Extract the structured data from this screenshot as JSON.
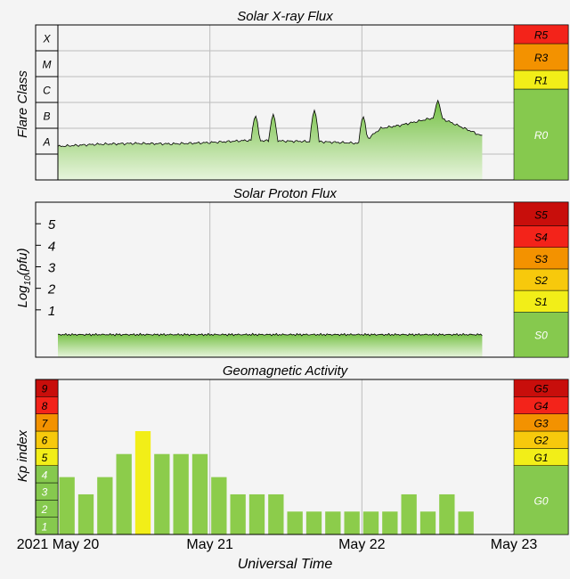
{
  "colors": {
    "background": "#f4f4f4",
    "axis": "#000000",
    "grid": "#bdbdbd",
    "quiet": "#86c94e",
    "fill_top": "#74c043",
    "fill_bottom": "#e7f4dc",
    "level_yellow": "#f2ee18",
    "level_amber": "#f7c90c",
    "level_orange": "#f39200",
    "level_red": "#f3231a",
    "level_darkred": "#c80e0b",
    "kp_bar": "#8ccc4b",
    "kp_bar_storm": "#f2ee18",
    "text": "#000000",
    "scale_text": "#ffffff"
  },
  "chart_data": [
    {
      "type": "area",
      "title": "Solar X-ray Flux",
      "ylabel": "Flare Class",
      "xlabel": "",
      "y_scale": "log",
      "ylim": [
        1e-09,
        0.001
      ],
      "flare_classes": [
        {
          "label": "A",
          "lower": 1e-08
        },
        {
          "label": "B",
          "lower": 1e-07
        },
        {
          "label": "C",
          "lower": 1e-06
        },
        {
          "label": "M",
          "lower": 1e-05
        },
        {
          "label": "X",
          "lower": 0.0001
        }
      ],
      "x_hours": [
        0,
        6,
        12,
        18,
        24,
        30,
        36,
        42,
        48,
        51,
        54,
        60,
        67
      ],
      "y_flux": [
        2e-08,
        2.4e-08,
        2.6e-08,
        2.5e-08,
        2.8e-08,
        3.4e-08,
        3.2e-08,
        3e-08,
        2.6e-08,
        1e-07,
        1.3e-07,
        2.8e-07,
        5e-08
      ],
      "spikes": [
        {
          "hour": 31.2,
          "flux": 3.2e-07
        },
        {
          "hour": 34.0,
          "flux": 3.5e-07
        },
        {
          "hour": 40.5,
          "flux": 5e-07
        },
        {
          "hour": 48.2,
          "flux": 3e-07
        },
        {
          "hour": 60.0,
          "flux": 1.2e-06
        }
      ],
      "radio_scale": [
        "R0",
        "R1",
        "R3",
        "R5"
      ],
      "current_level": "R0"
    },
    {
      "type": "area",
      "title": "Solar Proton Flux",
      "ylabel": "Log10(pfu)",
      "ylabel_main": "Log",
      "ylabel_sub": "10",
      "ylabel_tail": "(pfu)",
      "xlabel": "",
      "ylim": [
        -1.2,
        6
      ],
      "yticks": [
        1,
        2,
        3,
        4,
        5
      ],
      "ytick_labels": [
        "1",
        "2",
        "3",
        "4",
        "5"
      ],
      "x_hours": [
        0,
        67
      ],
      "y_log_pfu": [
        -0.15,
        -0.15
      ],
      "radiation_scale": [
        "S0",
        "S1",
        "S2",
        "S3",
        "S4",
        "S5"
      ],
      "current_level": "S0"
    },
    {
      "type": "bar",
      "title": "Geomagnetic Activity",
      "ylabel": "Kp index",
      "xlabel": "Universal Time",
      "ylim": [
        0,
        9
      ],
      "kp_levels": [
        "1",
        "2",
        "3",
        "4",
        "5",
        "6",
        "7",
        "8",
        "9"
      ],
      "bar_interval_hours": 3,
      "values": [
        3.33,
        2.33,
        3.33,
        4.67,
        6,
        4.67,
        4.67,
        4.67,
        3.33,
        2.33,
        2.33,
        2.33,
        1.33,
        1.33,
        1.33,
        1.33,
        1.33,
        1.33,
        2.33,
        1.33,
        2.33,
        1.33
      ],
      "storm_threshold": 5,
      "storm_scale": [
        "G0",
        "G1",
        "G2",
        "G3",
        "G4",
        "G5"
      ],
      "current_level": "G0"
    }
  ],
  "x_axis": {
    "range_hours": [
      0,
      72
    ],
    "ticks_hours": [
      0,
      24,
      48,
      72
    ],
    "labels": [
      "2021 May 20",
      "May 21",
      "May 22",
      "May 23"
    ],
    "title": "Universal Time"
  }
}
